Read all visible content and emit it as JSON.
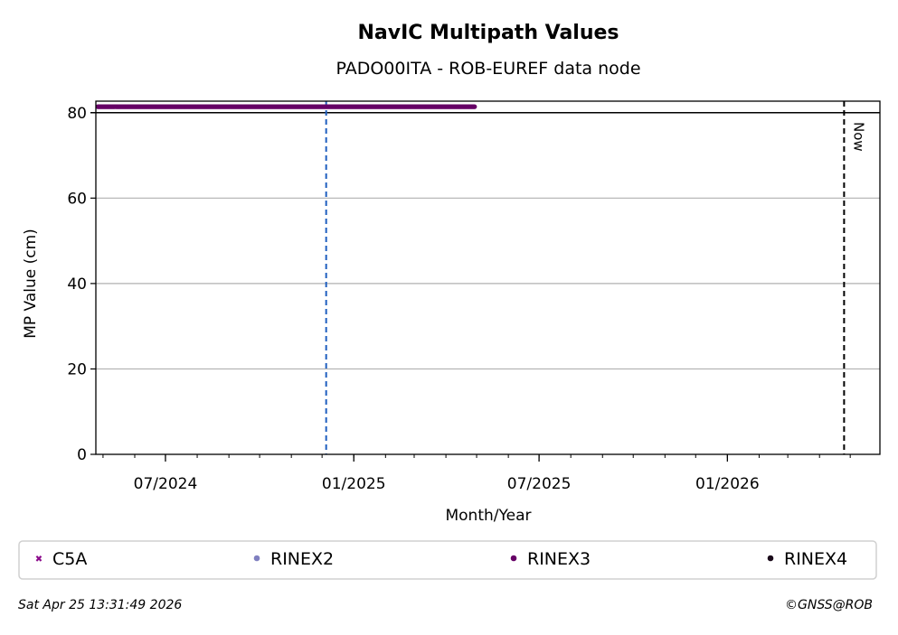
{
  "chart_data": {
    "type": "scatter",
    "title": "NavIC Multipath Values",
    "subtitle": "PADO00ITA - ROB-EUREF data node",
    "xlabel": "Month/Year",
    "ylabel": "MP Value (cm)",
    "xlim": [
      "2024-04-24",
      "2026-05-30"
    ],
    "ylim": [
      0,
      82.7
    ],
    "yticks": [
      0,
      20,
      40,
      60,
      80
    ],
    "xticks": [
      {
        "date": "2024-07-01",
        "label": "07/2024"
      },
      {
        "date": "2025-01-01",
        "label": "01/2025"
      },
      {
        "date": "2025-07-01",
        "label": "07/2025"
      },
      {
        "date": "2026-01-01",
        "label": "01/2026"
      }
    ],
    "grid": "horizontal",
    "reference_lines": [
      {
        "date": "2024-12-05",
        "color": "#1f5fbf",
        "style": "dashed",
        "label": ""
      },
      {
        "date": "2026-04-25",
        "color": "#000000",
        "style": "dashed",
        "label": "Now"
      }
    ],
    "threshold_line": {
      "value": 80,
      "color": "#000000"
    },
    "series": [
      {
        "name": "C5A",
        "marker": "x",
        "color": "#8b0a8b",
        "points": []
      },
      {
        "name": "RINEX2",
        "marker": "o",
        "color": "#8080c0",
        "points": []
      },
      {
        "name": "RINEX3",
        "marker": "o",
        "color": "#660066",
        "range": [
          "2024-04-26",
          "2025-04-29"
        ],
        "value": 81.4
      },
      {
        "name": "RINEX4",
        "marker": "o",
        "color": "#1a0a1a",
        "points": []
      }
    ],
    "legend_placement": "bottom"
  },
  "footer": {
    "timestamp": "Sat Apr 25 13:31:49 2026",
    "credit": "©GNSS@ROB"
  }
}
